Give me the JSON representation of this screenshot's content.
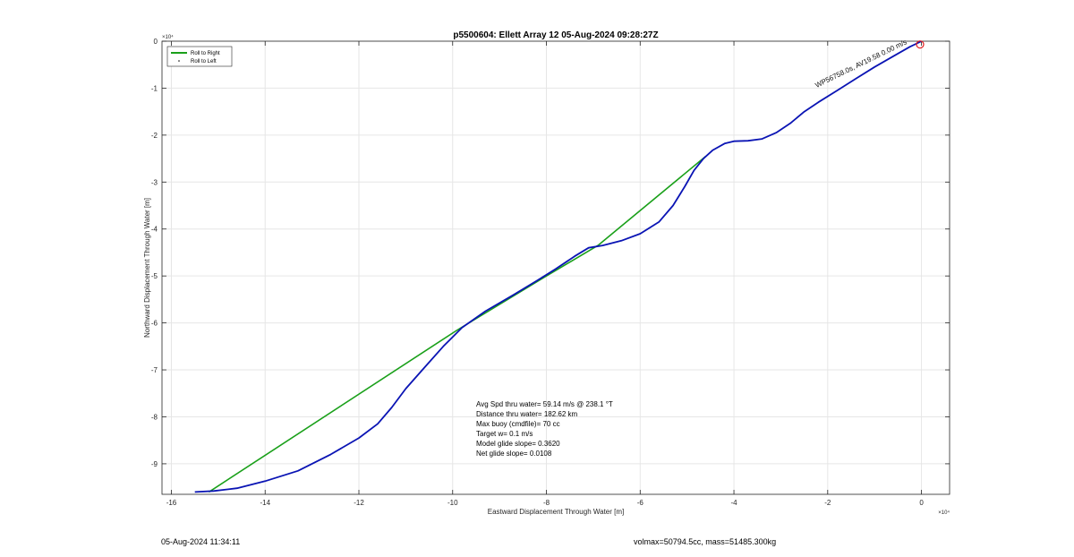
{
  "chart_data": {
    "type": "line",
    "title": "p5500604: Ellett Array 12 05-Aug-2024 09:28:27Z",
    "xlabel": "Eastward Displacement Through Water [m]",
    "ylabel": "Northward Displacement Through Water [m]",
    "x_exponent_label": "×10⁴",
    "y_exponent_label": "×10⁴",
    "xlim": [
      -16.2,
      0.6
    ],
    "ylim": [
      -9.65,
      0
    ],
    "xticks": [
      -16,
      -14,
      -12,
      -10,
      -8,
      -6,
      -4,
      -2,
      0
    ],
    "xtick_labels": [
      "-16",
      "-14",
      "-12",
      "-10",
      "-8",
      "-6",
      "-4",
      "-2",
      "0"
    ],
    "yticks": [
      0,
      -1,
      -2,
      -3,
      -4,
      -5,
      -6,
      -7,
      -8,
      -9
    ],
    "ytick_labels": [
      "0",
      "-1",
      "-2",
      "-3",
      "-4",
      "-5",
      "-6",
      "-7",
      "-8",
      "-9"
    ],
    "grid": true,
    "legend_position": "top-left",
    "series": [
      {
        "name": "Roll to Right",
        "color": "#1aa01a",
        "x": [
          -15.2,
          -9.9,
          -8.0,
          -6.9,
          -4.6
        ],
        "y": [
          -9.6,
          -6.15,
          -5.0,
          -4.35,
          -2.45
        ]
      },
      {
        "name": "Roll to Left",
        "color": "#0a14b4",
        "x": [
          -15.5,
          -15.1,
          -14.6,
          -14.0,
          -13.3,
          -12.6,
          -12.0,
          -11.6,
          -11.3,
          -11.0,
          -10.6,
          -10.2,
          -9.8,
          -9.3,
          -8.7,
          -8.2,
          -7.8,
          -7.4,
          -7.1,
          -6.8,
          -6.4,
          -6.0,
          -5.6,
          -5.3,
          -5.05,
          -4.85,
          -4.65,
          -4.45,
          -4.2,
          -4.0,
          -3.7,
          -3.4,
          -3.1,
          -2.8,
          -2.5,
          -2.2,
          -1.8,
          -1.4,
          -1.0,
          -0.6,
          -0.25,
          0
        ],
        "y": [
          -9.6,
          -9.58,
          -9.52,
          -9.37,
          -9.15,
          -8.8,
          -8.45,
          -8.15,
          -7.8,
          -7.4,
          -6.95,
          -6.5,
          -6.1,
          -5.75,
          -5.4,
          -5.1,
          -4.85,
          -4.58,
          -4.4,
          -4.35,
          -4.25,
          -4.1,
          -3.85,
          -3.5,
          -3.1,
          -2.75,
          -2.5,
          -2.32,
          -2.18,
          -2.13,
          -2.12,
          -2.08,
          -1.95,
          -1.75,
          -1.5,
          -1.3,
          -1.05,
          -0.8,
          -0.55,
          -0.32,
          -0.12,
          0
        ]
      }
    ],
    "waypoint_labels": [
      {
        "text": "WP56758.0s, AV19.58 0.00 m/s",
        "x": -0.3,
        "y": -0.05
      }
    ],
    "marker": {
      "x": -0.03,
      "y": -0.07,
      "color": "#e31a1c"
    },
    "annotations": [
      "Avg Spd thru water= 59.14 m/s @ 238.1 °T",
      "Distance thru water= 182.62 km",
      "Max buoy (cmdfile)= 70 cc",
      "Target w= 0.1 m/s",
      "Model glide slope= 0.3620",
      "Net glide slope= 0.0108"
    ]
  },
  "footer": {
    "timestamp": "05-Aug-2024 11:34:11",
    "volmass": "volmax=50794.5cc, mass=51485.300kg"
  }
}
